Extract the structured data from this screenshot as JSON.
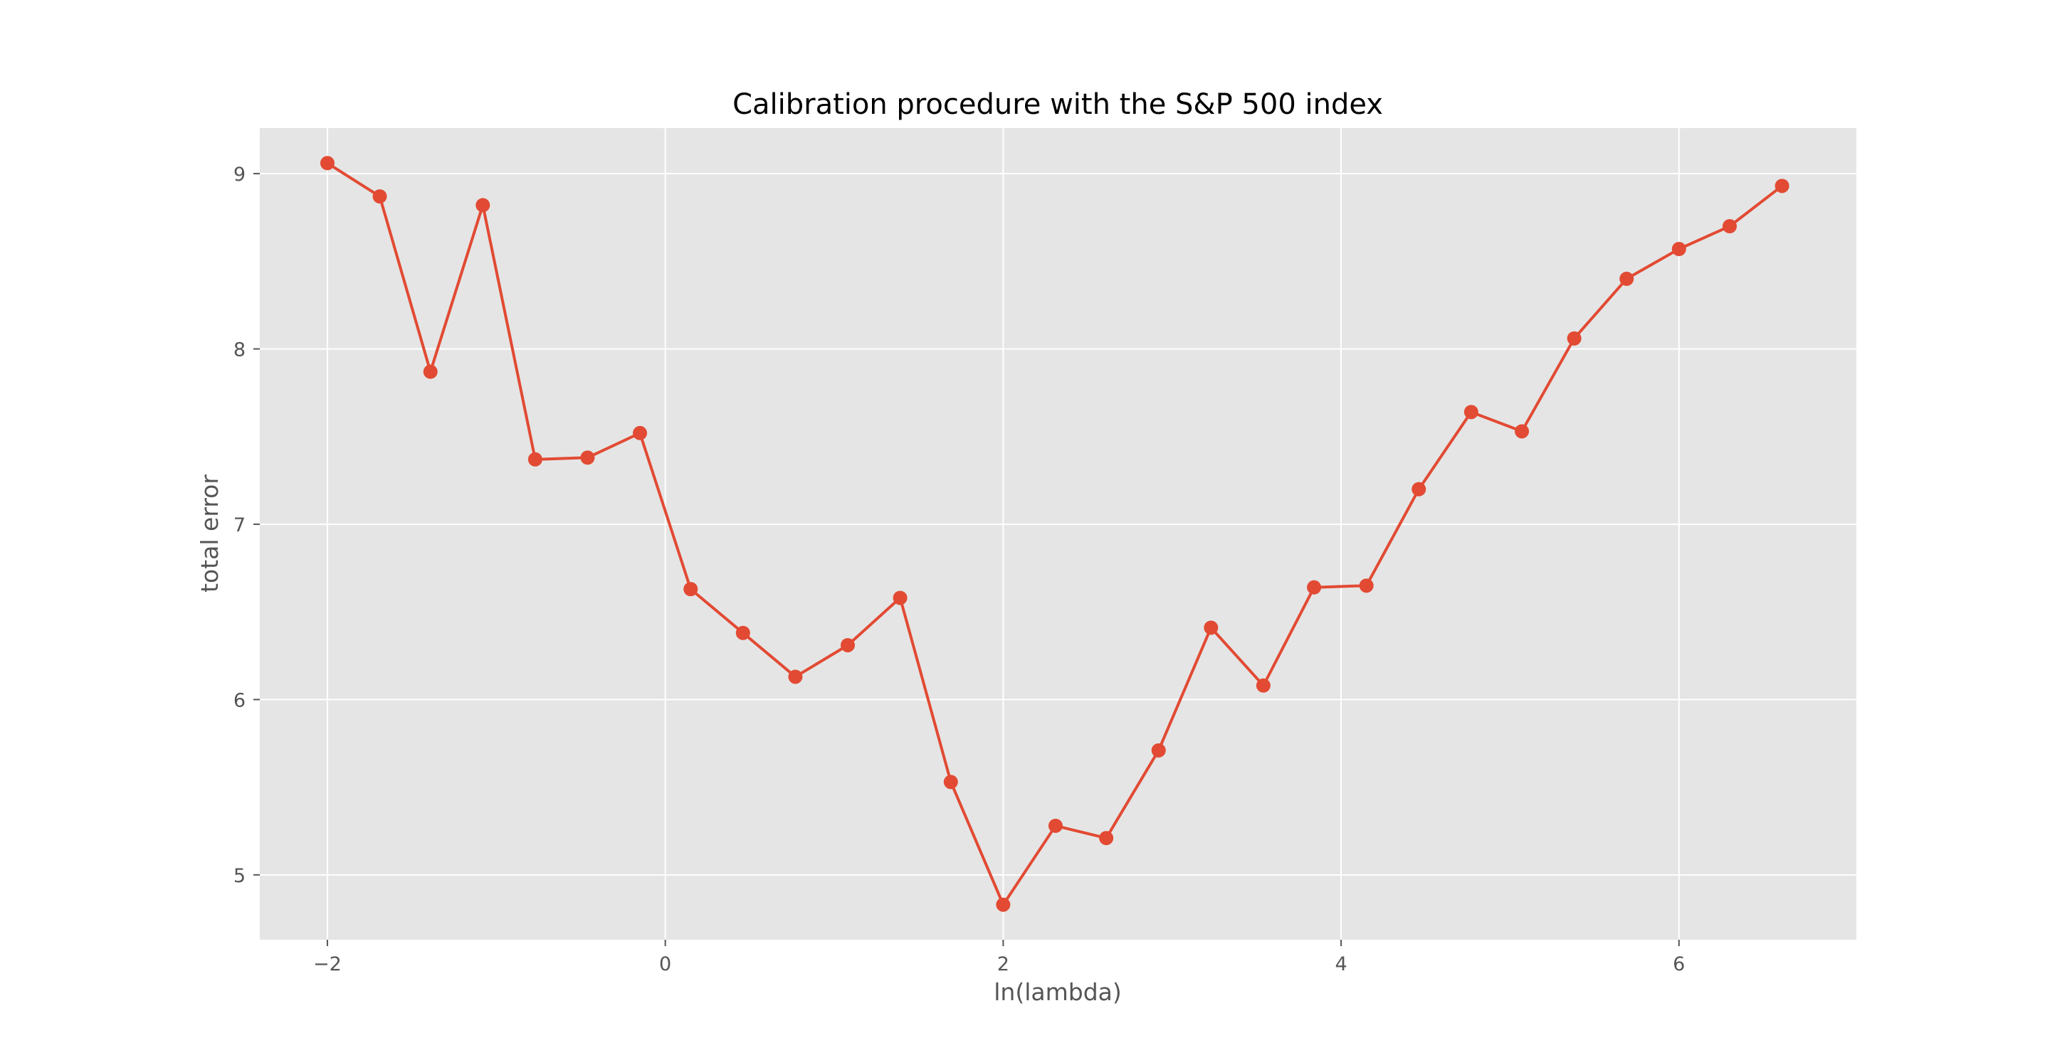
{
  "chart_data": {
    "type": "line",
    "title": "Calibration procedure with the S&P 500 index",
    "xlabel": "ln(lambda)",
    "ylabel": "total error",
    "xlim": [
      -2.4,
      7.05
    ],
    "ylim": [
      4.63,
      9.26
    ],
    "xticks": [
      -2,
      0,
      2,
      4,
      6
    ],
    "xtick_labels": [
      "−2",
      "0",
      "2",
      "4",
      "6"
    ],
    "yticks": [
      5,
      6,
      7,
      8,
      9
    ],
    "ytick_labels": [
      "5",
      "6",
      "7",
      "8",
      "9"
    ],
    "grid": true,
    "legend": "none",
    "colors": {
      "background": "#e5e5e5",
      "grid": "#ffffff",
      "line": "#e24a33",
      "text": "#555555"
    },
    "series": [
      {
        "x": [
          -2.0,
          -1.69,
          -1.39,
          -1.08,
          -0.77,
          -0.46,
          -0.15,
          0.15,
          0.46,
          0.77,
          1.08,
          1.39,
          1.69,
          2.0,
          2.31,
          2.61,
          2.92,
          3.23,
          3.54,
          3.84,
          4.15,
          4.46,
          4.77,
          5.07,
          5.38,
          5.69,
          6.0,
          6.3,
          6.61
        ],
        "y": [
          9.06,
          8.87,
          7.87,
          8.82,
          7.37,
          7.38,
          7.52,
          6.63,
          6.38,
          6.13,
          6.31,
          6.58,
          5.53,
          4.83,
          5.28,
          5.21,
          5.71,
          6.41,
          6.08,
          6.64,
          6.65,
          7.2,
          7.64,
          7.53,
          8.06,
          8.4,
          8.57,
          8.7,
          8.93
        ]
      }
    ]
  }
}
